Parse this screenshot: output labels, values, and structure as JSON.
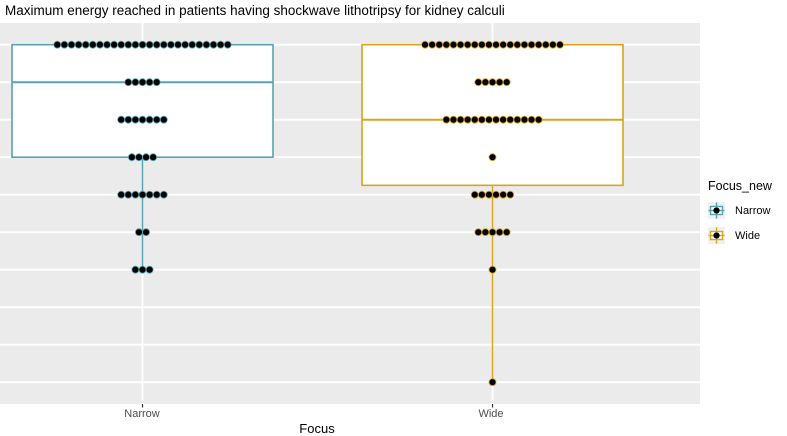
{
  "chart_data": {
    "type": "boxplot_with_dotplot",
    "title": "Maximum energy reached in patients having shockwave lithotripsy for kidney calculi",
    "xlabel": "Focus",
    "ylabel": null,
    "categories": [
      "Narrow",
      "Wide"
    ],
    "y_axis": {
      "tick_labels_visible": false,
      "note": "No y-axis tick labels are shown in the image; values below are expressed in horizontal-gridline units, where level 1 = lowest gridline and level 10 = highest gridline",
      "gridline_levels": [
        1,
        2,
        3,
        4,
        5,
        6,
        7,
        8,
        9,
        10
      ],
      "grid_on": true
    },
    "series": [
      {
        "name": "Narrow",
        "color": "#58a3b0",
        "box": {
          "q1": 7,
          "median": 9,
          "q3": 10,
          "whisker_low": 4,
          "whisker_high": 10
        },
        "dot_stacks": [
          {
            "level": 10,
            "count": 25
          },
          {
            "level": 9,
            "count": 5
          },
          {
            "level": 8,
            "count": 7
          },
          {
            "level": 7,
            "count": 4
          },
          {
            "level": 6,
            "count": 7
          },
          {
            "level": 5,
            "count": 2
          },
          {
            "level": 4,
            "count": 3
          }
        ]
      },
      {
        "name": "Wide",
        "color": "#d9a41e",
        "box": {
          "q1": 6.25,
          "median": 8,
          "q3": 10,
          "whisker_low": 1,
          "whisker_high": 10
        },
        "dot_stacks": [
          {
            "level": 10,
            "count": 20
          },
          {
            "level": 9,
            "count": 5
          },
          {
            "level": 8,
            "count": 14
          },
          {
            "level": 7,
            "count": 1
          },
          {
            "level": 6,
            "count": 6
          },
          {
            "level": 5,
            "count": 5
          },
          {
            "level": 4,
            "count": 1
          },
          {
            "level": 1,
            "count": 1
          }
        ]
      }
    ],
    "legend": {
      "title": "Focus_new",
      "position": "right",
      "entries": [
        {
          "label": "Narrow",
          "color": "#58a3b0"
        },
        {
          "label": "Wide",
          "color": "#d9a41e"
        }
      ]
    },
    "colors": {
      "panel_background": "#ebebeb",
      "gridline": "#ffffff",
      "box_fill": "#ffffff",
      "dot_fill": "#000000",
      "tick_mark": "#333333",
      "tick_label": "#4d4d4d",
      "legend_key_background": "#f0f0f0"
    }
  }
}
